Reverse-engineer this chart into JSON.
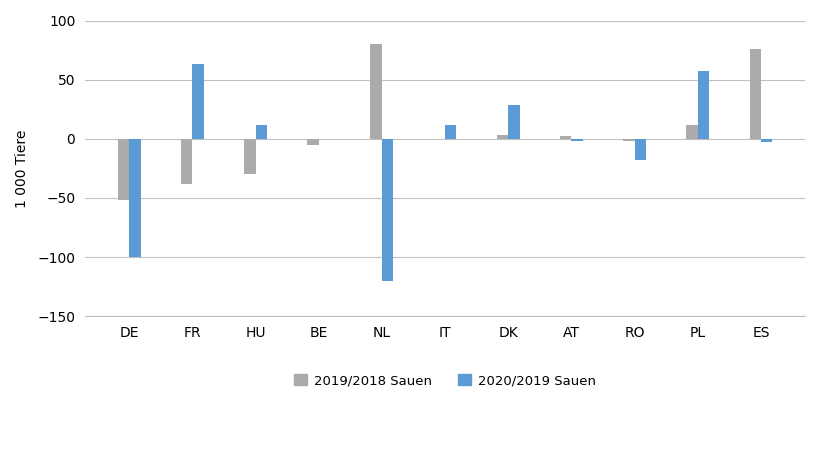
{
  "categories": [
    "DE",
    "FR",
    "HU",
    "BE",
    "NL",
    "IT",
    "DK",
    "AT",
    "RO",
    "PL",
    "ES"
  ],
  "series_2019_2018": [
    -52,
    -38,
    -30,
    -5,
    80,
    0,
    3,
    2,
    -2,
    12,
    76
  ],
  "series_2020_2019": [
    -100,
    63,
    12,
    0,
    -120,
    12,
    29,
    -2,
    -18,
    57,
    -3
  ],
  "color_2019_2018": "#ababab",
  "color_2020_2019": "#5b9bd5",
  "ylabel": "1 000 Tiere",
  "ylim": [
    -150,
    100
  ],
  "yticks": [
    -150,
    -100,
    -50,
    0,
    50,
    100
  ],
  "legend_2019": "2019/2018 Sauen",
  "legend_2020": "2020/2019 Sauen",
  "bar_width": 0.18,
  "background_color": "#ffffff",
  "grid_color": "#c0c0c0"
}
